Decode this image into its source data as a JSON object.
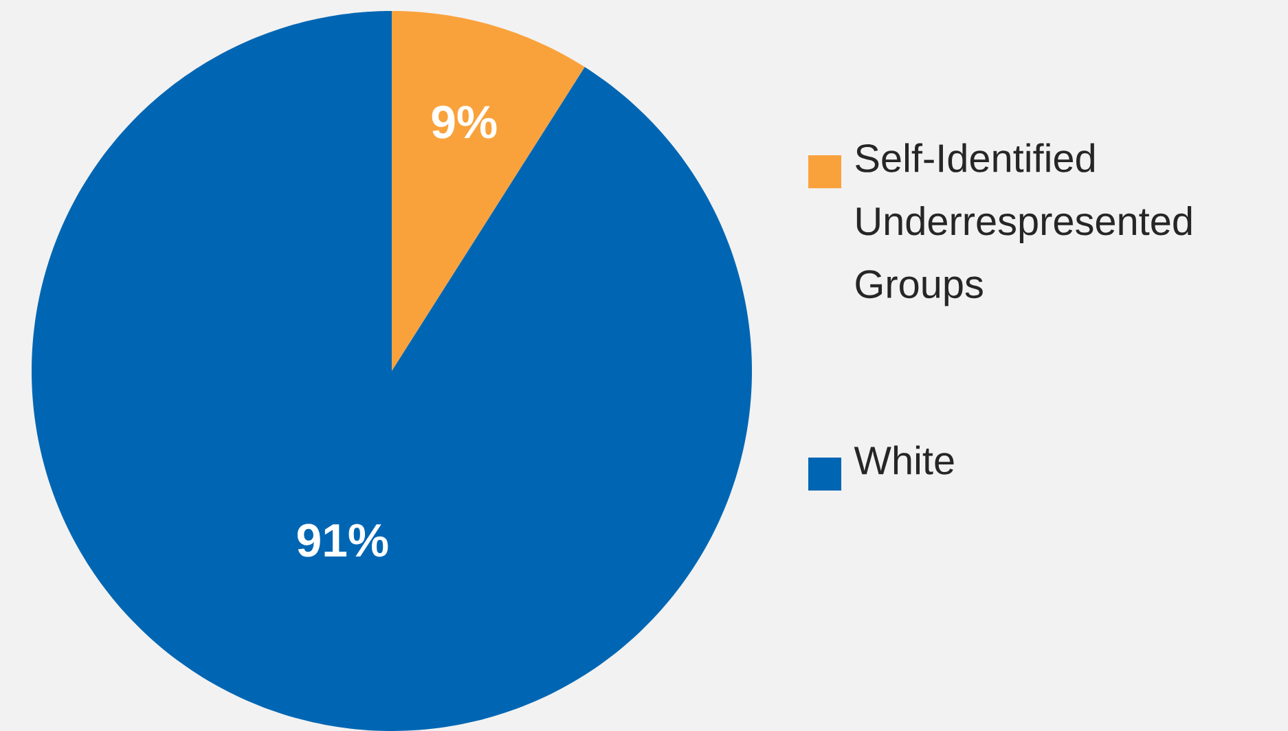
{
  "chart_data": {
    "type": "pie",
    "categories": [
      "Self-Identified Underrespresented Groups",
      "White"
    ],
    "values": [
      9,
      91
    ],
    "colors": [
      "#f9a23c",
      "#0066b3"
    ],
    "value_labels": [
      "9%",
      "91%"
    ],
    "legend": "right"
  }
}
